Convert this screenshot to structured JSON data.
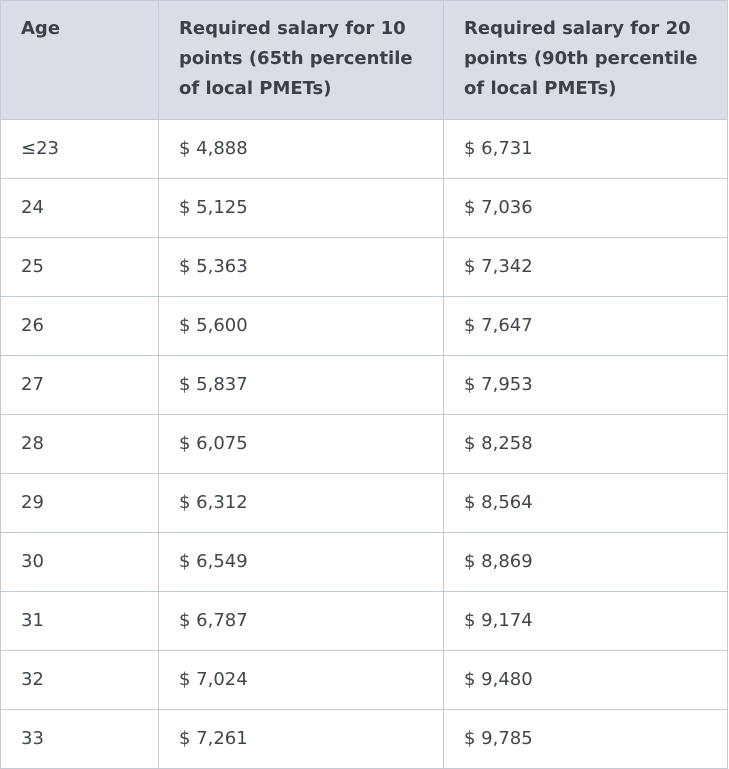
{
  "table": {
    "headers": [
      "Age",
      "Required salary for 10 points (65th percentile of local PMETs)",
      "Required salary for 20 points (90th percentile of local PMETs)"
    ],
    "rows": [
      [
        "≤23",
        "$ 4,888",
        "$ 6,731"
      ],
      [
        "24",
        "$ 5,125",
        "$ 7,036"
      ],
      [
        "25",
        "$ 5,363",
        "$ 7,342"
      ],
      [
        "26",
        "$ 5,600",
        "$ 7,647"
      ],
      [
        "27",
        "$ 5,837",
        "$ 7,953"
      ],
      [
        "28",
        "$ 6,075",
        "$ 8,258"
      ],
      [
        "29",
        "$ 6,312",
        "$ 8,564"
      ],
      [
        "30",
        "$ 6,549",
        "$ 8,869"
      ],
      [
        "31",
        "$ 6,787",
        "$ 9,174"
      ],
      [
        "32",
        "$ 7,024",
        "$ 9,480"
      ],
      [
        "33",
        "$ 7,261",
        "$ 9,785"
      ]
    ]
  }
}
